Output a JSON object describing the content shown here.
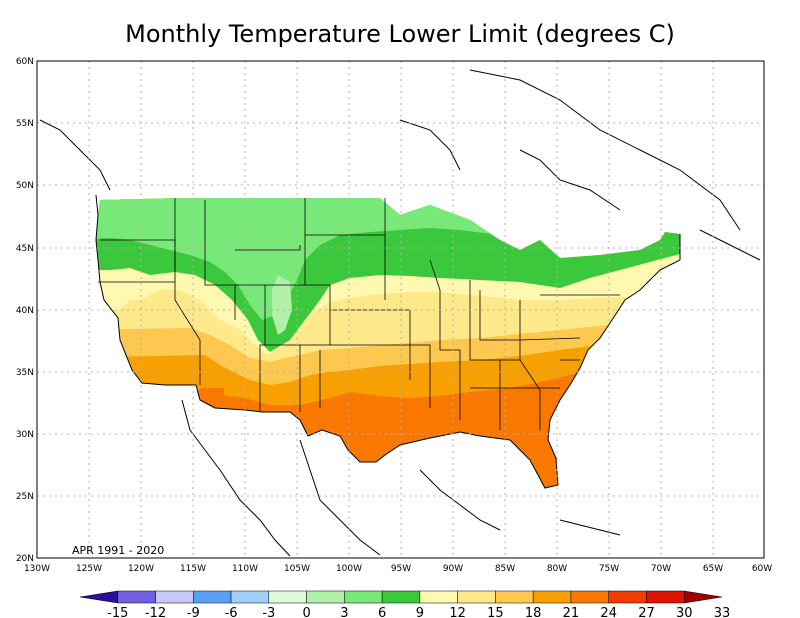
{
  "title": "Monthly Temperature Lower Limit (degrees C)",
  "period_label": "APR 1991 - 2020",
  "lat_ticks": [
    "20N",
    "25N",
    "30N",
    "35N",
    "40N",
    "45N",
    "50N",
    "55N",
    "60N"
  ],
  "lon_ticks": [
    "130W",
    "125W",
    "120W",
    "115W",
    "110W",
    "105W",
    "100W",
    "95W",
    "90W",
    "85W",
    "80W",
    "75W",
    "70W",
    "65W",
    "60W"
  ],
  "colorbar": {
    "labels": [
      "-15",
      "-12",
      "-9",
      "-6",
      "-3",
      "0",
      "3",
      "6",
      "9",
      "12",
      "15",
      "18",
      "21",
      "24",
      "27",
      "30",
      "33"
    ],
    "colors": [
      "#2a0fa0",
      "#7060e0",
      "#c8c8f8",
      "#5aa0f5",
      "#a0d0f8",
      "#e0fadc",
      "#b0f0a8",
      "#78e878",
      "#3cc83c",
      "#fff8b0",
      "#fde88a",
      "#fcc850",
      "#f8a000",
      "#f87800",
      "#f03c00",
      "#dc1400",
      "#a00000"
    ],
    "units": "degrees C"
  },
  "map_data": {
    "region": "Contiguous United States",
    "lon_range": [
      "130W",
      "60W"
    ],
    "lat_range": [
      "20N",
      "60N"
    ],
    "band_order_north_to_south": [
      "3 to 6",
      "6 to 9",
      "9 to 12",
      "12 to 15",
      "15 to 18",
      "18 to 21",
      "21 to 24"
    ]
  }
}
